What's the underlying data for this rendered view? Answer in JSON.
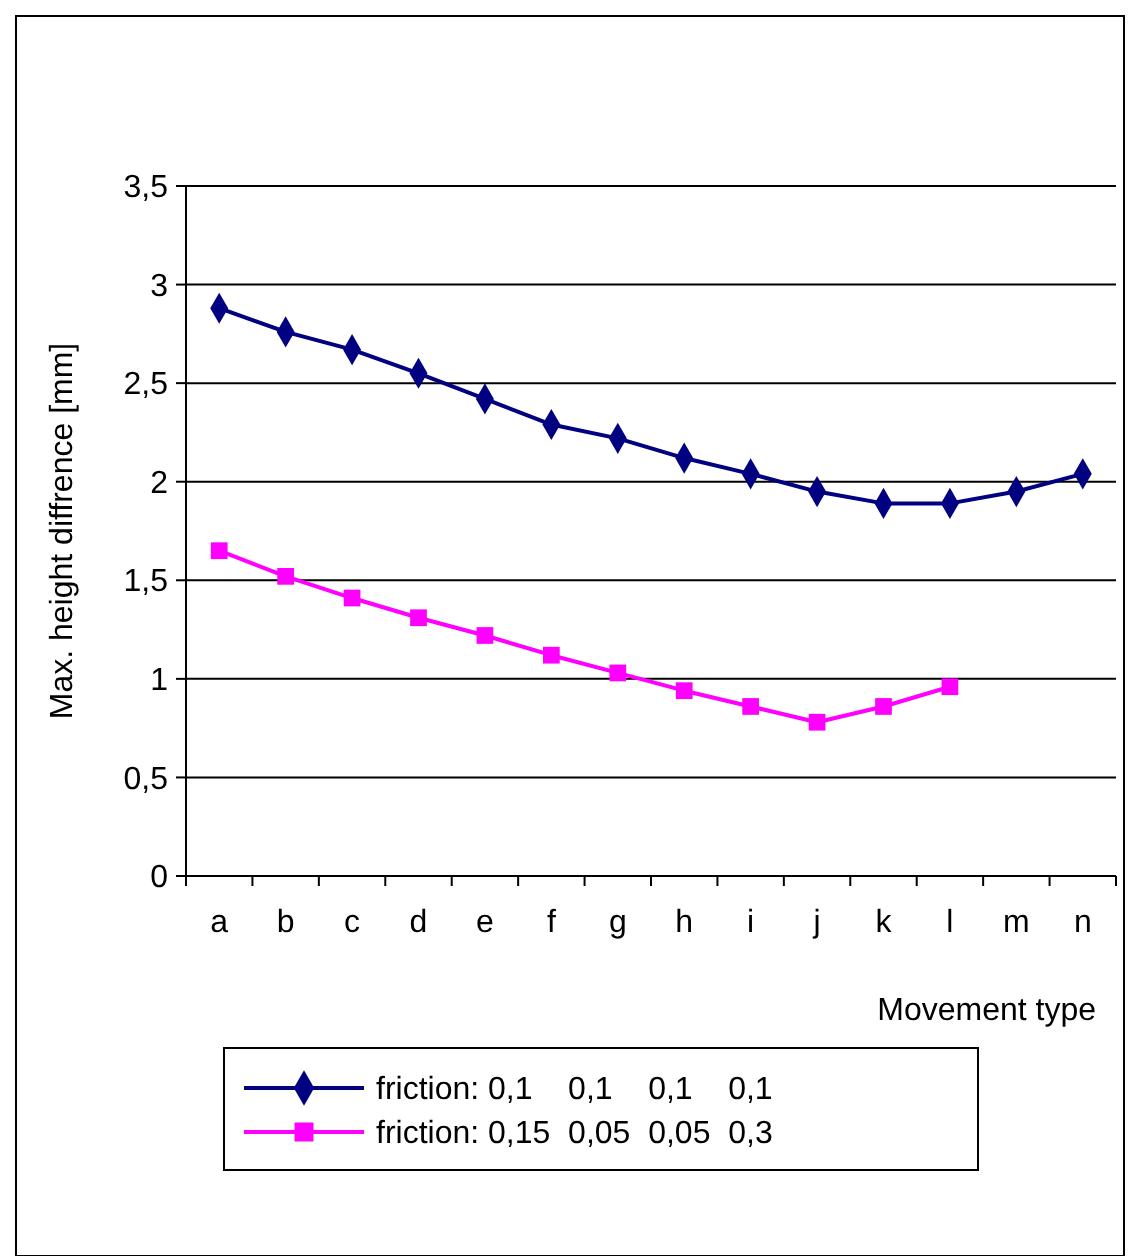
{
  "chart_data": {
    "type": "line",
    "xlabel": "Movement type",
    "ylabel": "Max. height diffrence [mm]",
    "categories": [
      "a",
      "b",
      "c",
      "d",
      "e",
      "f",
      "g",
      "h",
      "i",
      "j",
      "k",
      "l",
      "m",
      "n"
    ],
    "series": [
      {
        "name": "friction: 0,1    0,1    0,1    0,1",
        "color": "#000080",
        "marker": "diamond",
        "values": [
          2.88,
          2.76,
          2.67,
          2.55,
          2.42,
          2.29,
          2.22,
          2.12,
          2.04,
          1.95,
          1.89,
          1.89,
          1.95,
          2.04
        ]
      },
      {
        "name": "friction: 0,15  0,05  0,05  0,3",
        "color": "#ff00ff",
        "marker": "square",
        "values": [
          1.65,
          1.52,
          1.41,
          1.31,
          1.22,
          1.12,
          1.03,
          0.94,
          0.86,
          0.78,
          0.86,
          0.96,
          null,
          null
        ]
      }
    ],
    "ylim": [
      0,
      3.5
    ],
    "yticks": [
      0,
      {
        "value": 0.5,
        "label": "0,5"
      },
      1,
      {
        "value": 1.5,
        "label": "1,5"
      },
      2,
      {
        "value": 2.5,
        "label": "2,5"
      },
      3,
      {
        "value": 3.5,
        "label": "3,5"
      }
    ],
    "grid": "y",
    "legend": "bottom",
    "line_style": "solid"
  }
}
